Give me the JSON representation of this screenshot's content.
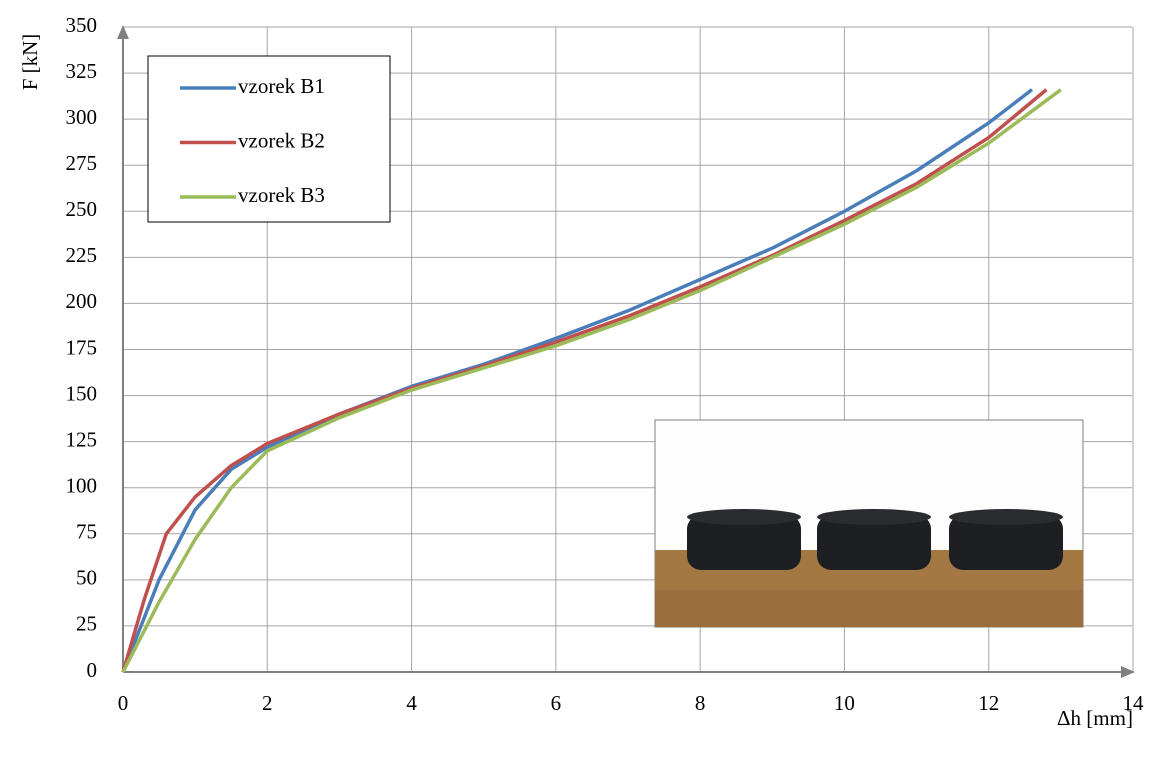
{
  "chart_data": {
    "type": "line",
    "x_label": "Δh [mm]",
    "y_label": "F [kN]",
    "xlim": [
      0,
      14
    ],
    "xticks": [
      0,
      2,
      4,
      6,
      8,
      10,
      12,
      14
    ],
    "ylim": [
      0,
      350
    ],
    "yticks": [
      0,
      25,
      50,
      75,
      100,
      125,
      150,
      175,
      200,
      225,
      250,
      275,
      300,
      325,
      350
    ],
    "grid": true,
    "legend": "upper left",
    "series": [
      {
        "name": "vzorek B1",
        "color": "#4a7ebb",
        "x": [
          0,
          0.5,
          1,
          1.5,
          2,
          3,
          4,
          5,
          6,
          7,
          8,
          9,
          10,
          11,
          12,
          12.6
        ],
        "values": [
          0,
          50,
          88,
          110,
          122,
          140,
          155,
          167,
          181,
          196,
          213,
          230,
          250,
          272,
          298,
          316
        ]
      },
      {
        "name": "vzorek B2",
        "color": "#c0504d",
        "x": [
          0,
          0.3,
          0.6,
          1,
          1.5,
          2,
          3,
          4,
          5,
          6,
          7,
          8,
          9,
          10,
          11,
          12,
          12.8
        ],
        "values": [
          0,
          40,
          75,
          95,
          112,
          124,
          140,
          154,
          166,
          179,
          193,
          209,
          226,
          245,
          265,
          290,
          316
        ]
      },
      {
        "name": "vzorek B3",
        "color": "#9bbb59",
        "x": [
          0,
          0.5,
          1,
          1.5,
          2,
          3,
          4,
          5,
          6,
          7,
          8,
          9,
          10,
          11,
          12,
          13
        ],
        "values": [
          0,
          38,
          72,
          100,
          120,
          138,
          153,
          165,
          177,
          191,
          207,
          225,
          243,
          263,
          287,
          316
        ]
      }
    ]
  }
}
